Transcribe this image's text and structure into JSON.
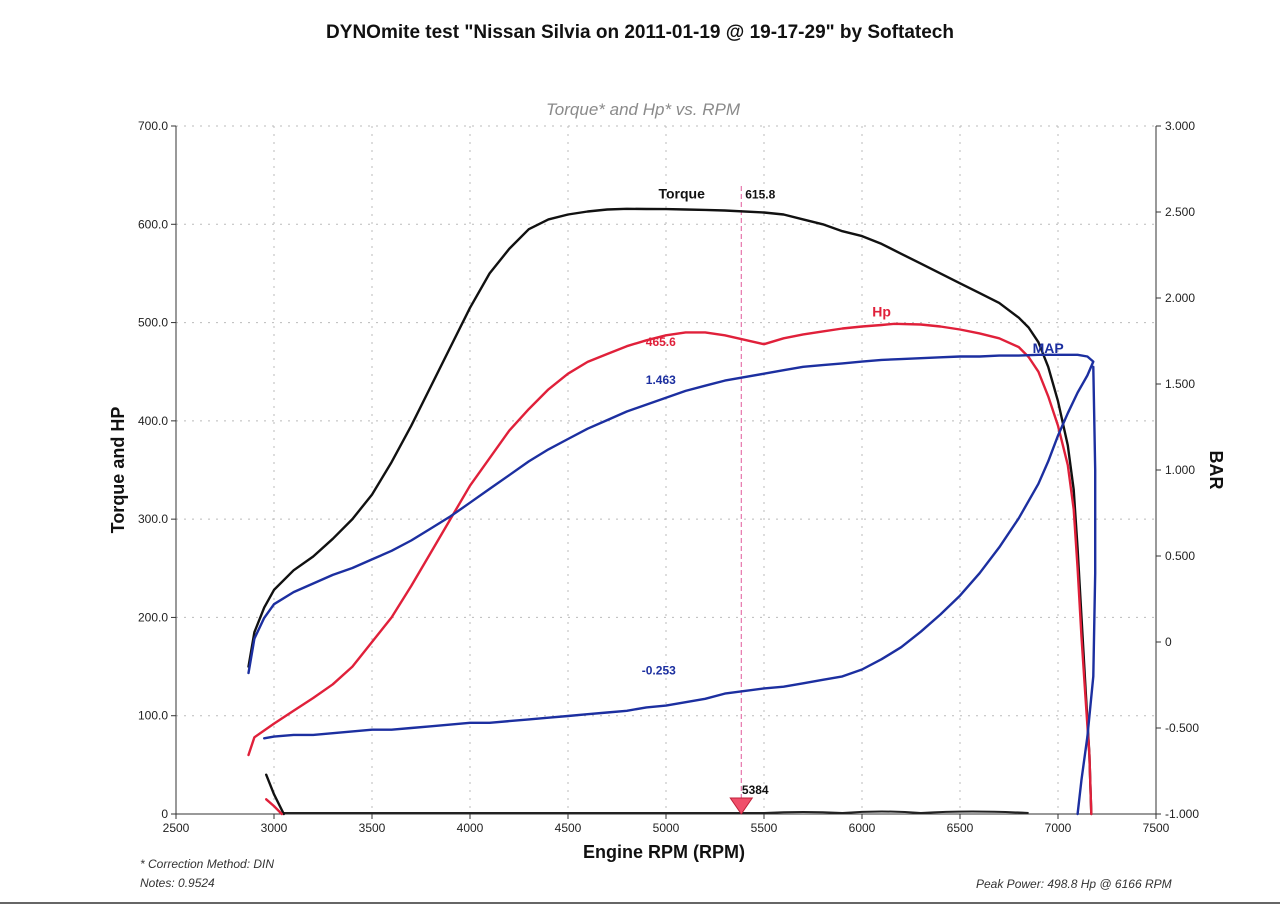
{
  "page": {
    "title": "DYNOmite test \"Nissan Silvia on 2011-01-19 @ 19-17-29\" by Softatech",
    "correction_note": "* Correction Method: DIN",
    "notes": "Notes: 0.9524",
    "peak_power": "Peak Power: 498.8 Hp @ 6166 RPM"
  },
  "colors": {
    "torque": "#111111",
    "hp": "#e0203a",
    "map": "#1c2fa0",
    "cursor": "#e05a9a",
    "grid": "#bbbbbb",
    "subtitle": "#8a8a8a"
  },
  "chart_data": {
    "type": "line",
    "title": "Torque* and Hp* vs. RPM",
    "xlabel": "Engine RPM (RPM)",
    "ylabel": "Torque and HP",
    "y2label": "BAR",
    "xlim": [
      2500,
      7500
    ],
    "ylim": [
      0,
      700
    ],
    "y2lim": [
      -1.0,
      3.0
    ],
    "x_ticks": [
      "2500",
      "3000",
      "3500",
      "4000",
      "4500",
      "5000",
      "5500",
      "6000",
      "6500",
      "7000",
      "7500"
    ],
    "y_ticks": [
      "0",
      "100.0",
      "200.0",
      "300.0",
      "400.0",
      "500.0",
      "600.0",
      "700.0"
    ],
    "y2_ticks": [
      "-1.000",
      "-0.500",
      "0",
      "0.500",
      "1.000",
      "1.500",
      "2.000",
      "2.500",
      "3.000"
    ],
    "grid": true,
    "cursor": {
      "rpm": 5384,
      "label": "5384"
    },
    "series": [
      {
        "name": "Torque",
        "axis": "left",
        "color_key": "torque",
        "points": [
          [
            2870,
            150
          ],
          [
            2900,
            185
          ],
          [
            2950,
            210
          ],
          [
            3000,
            228
          ],
          [
            3100,
            248
          ],
          [
            3200,
            262
          ],
          [
            3300,
            280
          ],
          [
            3400,
            300
          ],
          [
            3500,
            325
          ],
          [
            3600,
            358
          ],
          [
            3700,
            395
          ],
          [
            3800,
            435
          ],
          [
            3900,
            475
          ],
          [
            4000,
            515
          ],
          [
            4100,
            550
          ],
          [
            4200,
            575
          ],
          [
            4300,
            595
          ],
          [
            4400,
            605
          ],
          [
            4500,
            610
          ],
          [
            4600,
            613
          ],
          [
            4700,
            615
          ],
          [
            4800,
            615.8
          ],
          [
            4900,
            615.6
          ],
          [
            5000,
            615.4
          ],
          [
            5100,
            615
          ],
          [
            5200,
            614.6
          ],
          [
            5300,
            614
          ],
          [
            5384,
            615.8
          ],
          [
            5500,
            612
          ],
          [
            5600,
            610
          ],
          [
            5700,
            605
          ],
          [
            5800,
            600
          ],
          [
            5900,
            593
          ],
          [
            6000,
            588
          ],
          [
            6100,
            580
          ],
          [
            6200,
            570
          ],
          [
            6300,
            560
          ],
          [
            6400,
            550
          ],
          [
            6500,
            540
          ],
          [
            6600,
            530
          ],
          [
            6700,
            520
          ],
          [
            6800,
            505
          ],
          [
            6850,
            495
          ],
          [
            6900,
            480
          ],
          [
            6950,
            455
          ],
          [
            7000,
            420
          ],
          [
            7050,
            375
          ],
          [
            7080,
            330
          ],
          [
            7100,
            270
          ],
          [
            7120,
            200
          ],
          [
            7140,
            130
          ],
          [
            7160,
            60
          ],
          [
            7170,
            0
          ]
        ],
        "tail_points": [
          [
            2960,
            40
          ],
          [
            3000,
            20
          ],
          [
            3050,
            0
          ]
        ]
      },
      {
        "name": "Hp",
        "axis": "left",
        "color_key": "hp",
        "points": [
          [
            2870,
            60
          ],
          [
            2900,
            78
          ],
          [
            3000,
            92
          ],
          [
            3100,
            105
          ],
          [
            3200,
            118
          ],
          [
            3300,
            132
          ],
          [
            3400,
            150
          ],
          [
            3500,
            175
          ],
          [
            3600,
            200
          ],
          [
            3700,
            232
          ],
          [
            3800,
            266
          ],
          [
            3900,
            300
          ],
          [
            4000,
            334
          ],
          [
            4100,
            362
          ],
          [
            4200,
            390
          ],
          [
            4300,
            412
          ],
          [
            4400,
            432
          ],
          [
            4500,
            448
          ],
          [
            4600,
            460
          ],
          [
            4700,
            468
          ],
          [
            4800,
            476
          ],
          [
            4900,
            482
          ],
          [
            5000,
            487
          ],
          [
            5100,
            490
          ],
          [
            5200,
            490
          ],
          [
            5300,
            487
          ],
          [
            5384,
            465.6
          ],
          [
            5500,
            478
          ],
          [
            5600,
            484
          ],
          [
            5700,
            488
          ],
          [
            5800,
            491
          ],
          [
            5900,
            494
          ],
          [
            6000,
            496
          ],
          [
            6100,
            497.5
          ],
          [
            6166,
            498.8
          ],
          [
            6300,
            498
          ],
          [
            6400,
            496
          ],
          [
            6500,
            493
          ],
          [
            6600,
            489
          ],
          [
            6700,
            484
          ],
          [
            6800,
            475
          ],
          [
            6850,
            465
          ],
          [
            6900,
            450
          ],
          [
            6950,
            425
          ],
          [
            7000,
            395
          ],
          [
            7050,
            355
          ],
          [
            7080,
            310
          ],
          [
            7100,
            250
          ],
          [
            7120,
            180
          ],
          [
            7140,
            120
          ],
          [
            7160,
            60
          ],
          [
            7170,
            0
          ]
        ],
        "tail_points": [
          [
            2960,
            15
          ],
          [
            3000,
            8
          ],
          [
            3040,
            0
          ]
        ]
      },
      {
        "name": "MAP",
        "axis": "right",
        "color_key": "map",
        "points": [
          [
            2870,
            -0.18
          ],
          [
            2900,
            0.02
          ],
          [
            2950,
            0.14
          ],
          [
            3000,
            0.22
          ],
          [
            3100,
            0.29
          ],
          [
            3200,
            0.34
          ],
          [
            3300,
            0.39
          ],
          [
            3400,
            0.43
          ],
          [
            3500,
            0.48
          ],
          [
            3600,
            0.53
          ],
          [
            3700,
            0.59
          ],
          [
            3800,
            0.66
          ],
          [
            3900,
            0.73
          ],
          [
            4000,
            0.81
          ],
          [
            4100,
            0.89
          ],
          [
            4200,
            0.97
          ],
          [
            4300,
            1.05
          ],
          [
            4400,
            1.12
          ],
          [
            4500,
            1.18
          ],
          [
            4600,
            1.24
          ],
          [
            4700,
            1.29
          ],
          [
            4800,
            1.34
          ],
          [
            4900,
            1.38
          ],
          [
            5000,
            1.42
          ],
          [
            5100,
            1.46
          ],
          [
            5200,
            1.49
          ],
          [
            5300,
            1.52
          ],
          [
            5384,
            1.463
          ],
          [
            5500,
            1.56
          ],
          [
            5600,
            1.58
          ],
          [
            5700,
            1.6
          ],
          [
            5800,
            1.61
          ],
          [
            5900,
            1.62
          ],
          [
            6000,
            1.63
          ],
          [
            6100,
            1.64
          ],
          [
            6200,
            1.645
          ],
          [
            6300,
            1.65
          ],
          [
            6400,
            1.655
          ],
          [
            6500,
            1.66
          ],
          [
            6600,
            1.66
          ],
          [
            6700,
            1.665
          ],
          [
            6800,
            1.665
          ],
          [
            6900,
            1.67
          ],
          [
            7000,
            1.67
          ],
          [
            7100,
            1.67
          ],
          [
            7150,
            1.66
          ],
          [
            7180,
            1.63
          ],
          [
            7150,
            1.55
          ],
          [
            7100,
            1.45
          ],
          [
            7050,
            1.33
          ],
          [
            7000,
            1.2
          ],
          [
            6950,
            1.05
          ],
          [
            6900,
            0.92
          ],
          [
            6800,
            0.72
          ],
          [
            6700,
            0.55
          ],
          [
            6600,
            0.4
          ],
          [
            6500,
            0.27
          ],
          [
            6400,
            0.16
          ],
          [
            6300,
            0.06
          ],
          [
            6200,
            -0.03
          ],
          [
            6100,
            -0.1
          ],
          [
            6000,
            -0.16
          ],
          [
            5900,
            -0.2
          ],
          [
            5800,
            -0.22
          ],
          [
            5700,
            -0.24
          ],
          [
            5600,
            -0.26
          ],
          [
            5500,
            -0.27
          ],
          [
            5384,
            -0.253
          ],
          [
            5300,
            -0.3
          ],
          [
            5200,
            -0.33
          ],
          [
            5100,
            -0.35
          ],
          [
            5000,
            -0.37
          ],
          [
            4900,
            -0.38
          ],
          [
            4800,
            -0.4
          ],
          [
            4700,
            -0.41
          ],
          [
            4600,
            -0.42
          ],
          [
            4500,
            -0.43
          ],
          [
            4400,
            -0.44
          ],
          [
            4300,
            -0.45
          ],
          [
            4200,
            -0.46
          ],
          [
            4100,
            -0.47
          ],
          [
            4000,
            -0.47
          ],
          [
            3900,
            -0.48
          ],
          [
            3800,
            -0.49
          ],
          [
            3700,
            -0.5
          ],
          [
            3600,
            -0.51
          ],
          [
            3500,
            -0.51
          ],
          [
            3400,
            -0.52
          ],
          [
            3300,
            -0.53
          ],
          [
            3200,
            -0.54
          ],
          [
            3100,
            -0.54
          ],
          [
            3000,
            -0.55
          ],
          [
            2950,
            -0.56
          ]
        ],
        "tail_points": [
          [
            7180,
            1.6
          ],
          [
            7190,
            1.0
          ],
          [
            7190,
            0.4
          ],
          [
            7180,
            -0.2
          ],
          [
            7150,
            -0.55
          ],
          [
            7120,
            -0.8
          ],
          [
            7100,
            -1.0
          ]
        ]
      }
    ],
    "annotations": [
      {
        "series": "Torque",
        "label": "Torque",
        "x": 5080,
        "y": 626,
        "axis": "left"
      },
      {
        "series": "Torque",
        "label": "615.8",
        "x": 5384,
        "y": 626,
        "axis": "left"
      },
      {
        "series": "Hp",
        "label": "Hp",
        "x": 6100,
        "y": 506,
        "axis": "left"
      },
      {
        "series": "Hp",
        "label": "465.6",
        "x": 5050,
        "y": 476,
        "axis": "left"
      },
      {
        "series": "MAP",
        "label": "MAP",
        "x": 6950,
        "y": 1.68,
        "axis": "right"
      },
      {
        "series": "MAP",
        "label": "1.463",
        "x": 5050,
        "y": 1.5,
        "axis": "right"
      },
      {
        "series": "MAP",
        "label": "-0.253",
        "x": 5050,
        "y": -0.19,
        "axis": "right"
      }
    ]
  }
}
